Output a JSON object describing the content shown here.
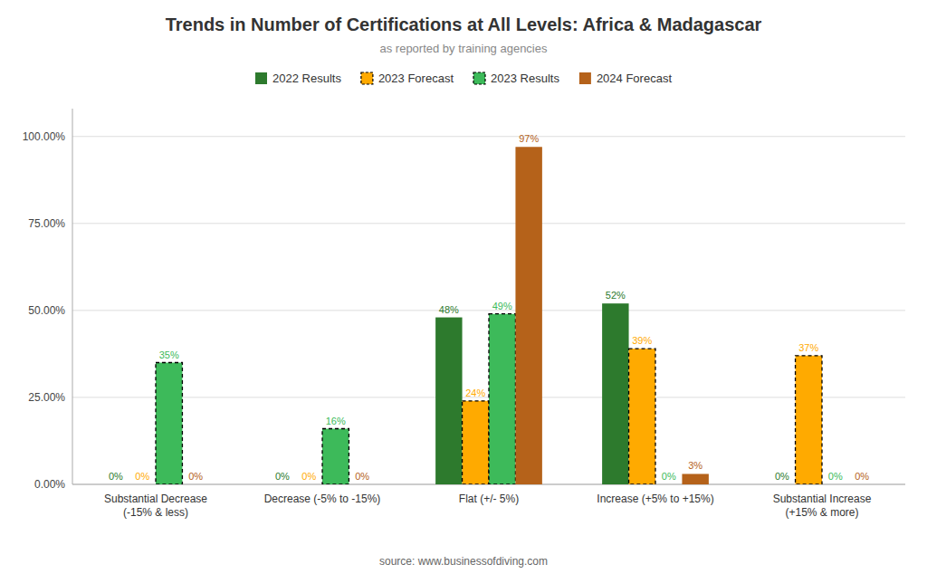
{
  "chart_data": {
    "type": "bar",
    "title": "Trends in Number of Certifications at All Levels: Africa & Madagascar",
    "subtitle": "as reported by training agencies",
    "annotations": [
      "source: www.businessofdiving.com"
    ],
    "categories": [
      "Substantial Decrease\n(-15% & less)",
      "Decrease (-5% to -15%)",
      "Flat (+/- 5%)",
      "Increase (+5% to +15%)",
      "Substantial Increase\n(+15% & more)"
    ],
    "series": [
      {
        "name": "2022 Results",
        "color": "#2d7a2d",
        "line_style": "solid",
        "values": [
          0,
          0,
          48,
          52,
          0
        ],
        "value_labels": [
          "0%",
          "0%",
          "48%",
          "52%",
          "0%"
        ]
      },
      {
        "name": "2023 Forecast",
        "color": "#ffaa00",
        "line_style": "dashed",
        "values": [
          0,
          0,
          24,
          39,
          37
        ],
        "value_labels": [
          "0%",
          "0%",
          "24%",
          "39%",
          "37%"
        ]
      },
      {
        "name": "2023 Results",
        "color": "#3dba5a",
        "line_style": "dashed",
        "values": [
          35,
          16,
          49,
          0,
          0
        ],
        "value_labels": [
          "35%",
          "16%",
          "49%",
          "0%",
          "0%"
        ]
      },
      {
        "name": "2024 Forecast",
        "color": "#b5621a",
        "line_style": "solid",
        "values": [
          0,
          0,
          97,
          3,
          0
        ],
        "value_labels": [
          "0%",
          "0%",
          "97%",
          "3%",
          "0%"
        ]
      }
    ],
    "ylim": [
      0,
      108
    ],
    "yticks": [
      {
        "value": 0,
        "label": "0.00%"
      },
      {
        "value": 25,
        "label": "25.00%"
      },
      {
        "value": 50,
        "label": "50.00%"
      },
      {
        "value": 75,
        "label": "75.00%"
      },
      {
        "value": 100,
        "label": "100.00%"
      }
    ],
    "grid": true,
    "legend": "top",
    "data_labels": true
  }
}
